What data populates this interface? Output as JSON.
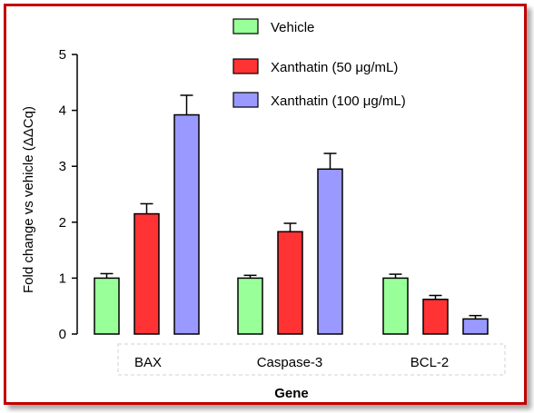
{
  "chart_data": {
    "type": "bar",
    "xlabel": "Gene",
    "ylabel": "Fold change vs vehicle (ΔΔCq)",
    "ylim": [
      0,
      5
    ],
    "yticks": [
      "0",
      "1",
      "2",
      "3",
      "4",
      "5"
    ],
    "categories": [
      "BAX",
      "Caspase-3",
      "BCL-2"
    ],
    "series": [
      {
        "name": "Vehicle",
        "color": "#99ff99",
        "values": [
          1.0,
          1.0,
          1.0
        ],
        "errors": [
          0.08,
          0.05,
          0.07
        ]
      },
      {
        "name": "Xanthatin (50 μg/mL)",
        "color": "#ff3333",
        "values": [
          2.15,
          1.83,
          0.62
        ],
        "errors": [
          0.18,
          0.15,
          0.07
        ]
      },
      {
        "name": "Xanthatin (100 μg/mL)",
        "color": "#9999ff",
        "values": [
          3.92,
          2.95,
          0.27
        ],
        "errors": [
          0.35,
          0.28,
          0.06
        ]
      }
    ],
    "legend_position": "top",
    "grid": false
  }
}
